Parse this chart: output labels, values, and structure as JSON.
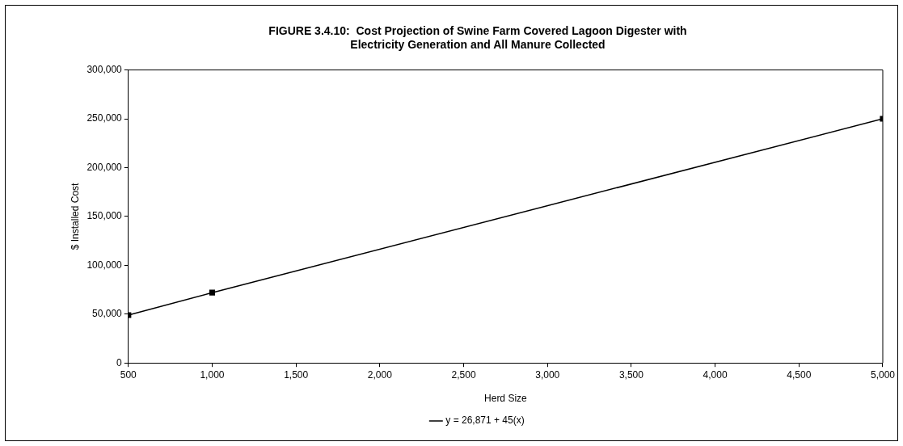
{
  "chart_data": {
    "type": "line",
    "title": "FIGURE 3.4.10:  Cost Projection of Swine Farm Covered Lagoon Digester with Electricity Generation and All Manure Collected",
    "xlabel": "Herd Size",
    "ylabel": "$ Installed Cost",
    "x": [
      500,
      1000,
      5000
    ],
    "series": [
      {
        "name": "y = 26,871 + 45(x)",
        "color": "#000000",
        "values": [
          49000,
          72000,
          250000
        ]
      }
    ],
    "xlim": [
      500,
      5000
    ],
    "xticks": [
      {
        "value": 500,
        "label": "500"
      },
      {
        "value": 1000,
        "label": "1,000"
      },
      {
        "value": 1500,
        "label": "1,500"
      },
      {
        "value": 2000,
        "label": "2,000"
      },
      {
        "value": 2500,
        "label": "2,500"
      },
      {
        "value": 3000,
        "label": "3,000"
      },
      {
        "value": 3500,
        "label": "3,500"
      },
      {
        "value": 4000,
        "label": "4,000"
      },
      {
        "value": 4500,
        "label": "4,500"
      },
      {
        "value": 5000,
        "label": "5,000"
      }
    ],
    "ylim": [
      0,
      300000
    ],
    "yticks": [
      0,
      {
        "value": 50000,
        "label": "50,000"
      },
      {
        "value": 100000,
        "label": "100,000"
      },
      {
        "value": 150000,
        "label": "150,000"
      },
      {
        "value": 200000,
        "label": "200,000"
      },
      {
        "value": 250000,
        "label": "250,000"
      },
      {
        "value": 300000,
        "label": "300,000"
      }
    ],
    "grid": false,
    "legend": "bottom",
    "marker": "square",
    "line_style": "solid"
  }
}
